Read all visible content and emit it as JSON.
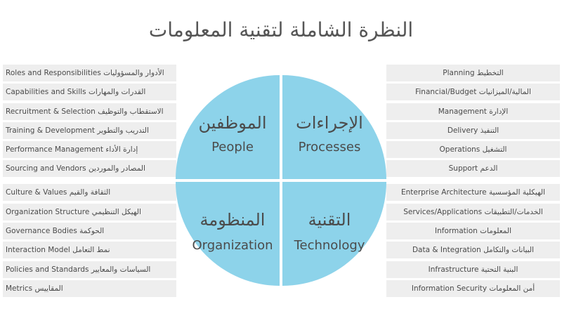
{
  "title": "النظرة الشاملة لتقنية المعلومات",
  "quadrants": {
    "people": {
      "ar": "الموظفين",
      "en": "People"
    },
    "processes": {
      "ar": "الإجراءات",
      "en": "Processes"
    },
    "organization": {
      "ar": "المنظومة",
      "en": "Organization"
    },
    "technology": {
      "ar": "التقنية",
      "en": "Technology"
    }
  },
  "left_top": [
    "Roles and Responsibilities الأدوار والمسؤوليات",
    "Capabilities and Skills القدرات والمهارات",
    "Recruitment & Selection الاستقطاب والتوظيف",
    "Training & Development التدريب والتطوير",
    "Performance Management إدارة الأداء",
    "Sourcing and Vendors المصادر والموردين"
  ],
  "left_bottom": [
    "Culture & Values الثقافة والقيم",
    "Organization Structure الهيكل التنظيمي",
    "Governance Bodies الحوكمة",
    "Interaction Model نمط التعامل",
    "Policies and Standards السياسات والمعايير",
    "Metrics المقاييس"
  ],
  "right_top": [
    "Planning التخطيط",
    "Financial/Budget المالية/الميزانيات",
    "Management الإدارة",
    "Delivery التنفيذ",
    "Operations التشغيل",
    "Support الدعم"
  ],
  "right_bottom": [
    "Enterprise Architecture الهيكلية المؤسسية",
    "Services/Applications الخدمات/التطبيقات",
    "Information المعلومات",
    "Data & Integration البيانات والتكامل",
    "Infrastructure البنية التحتية",
    "Information Security أمن المعلومات"
  ],
  "colors": {
    "quadrant": "#8dd3ea",
    "row_bg": "#eeeeee",
    "text": "#4a4a4a"
  }
}
